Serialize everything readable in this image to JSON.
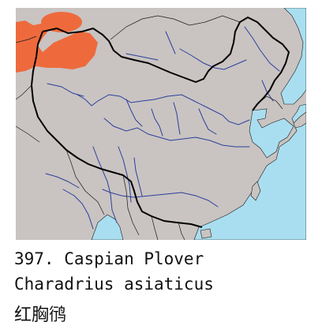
{
  "species": {
    "number_line": "397. Caspian Plover",
    "scientific_name": "Charadrius asiaticus",
    "chinese_name": "红胸鸻"
  },
  "map": {
    "colors": {
      "land": "#c9c4c2",
      "sea": "#a9def0",
      "range": "#ee6a3c",
      "rivers": "#2c3f9a",
      "border": "#000000"
    }
  }
}
